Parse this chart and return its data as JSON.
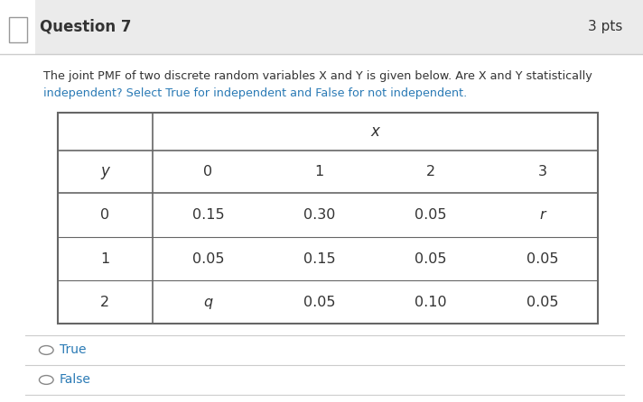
{
  "question_number": "Question 7",
  "pts": "3 pts",
  "desc_line1": "The joint PMF of two discrete random variables X and Y is given below. Are X and Y statistically",
  "desc_line2": "independent? Select True for independent and False for not independent.",
  "x_label": "x",
  "y_label": "y",
  "x_values": [
    "0",
    "1",
    "2",
    "3"
  ],
  "y_values": [
    "0",
    "1",
    "2"
  ],
  "table_data": [
    [
      "0.15",
      "0.30",
      "0.05",
      "r"
    ],
    [
      "0.05",
      "0.15",
      "0.05",
      "0.05"
    ],
    [
      "q",
      "0.05",
      "0.10",
      "0.05"
    ]
  ],
  "option1": "True",
  "option2": "False",
  "white": "#ffffff",
  "light_gray": "#ebebeb",
  "mid_gray": "#cccccc",
  "dark_text": "#333333",
  "blue_text": "#2a7ab5",
  "border_color": "#aaaaaa",
  "table_border": "#666666"
}
